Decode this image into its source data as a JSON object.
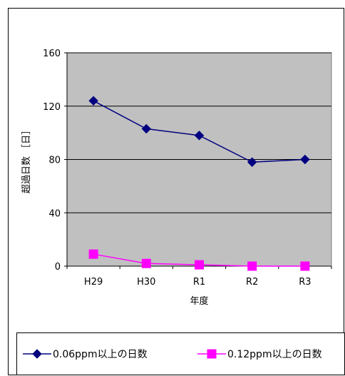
{
  "chart_data": {
    "type": "line",
    "categories": [
      "H29",
      "H30",
      "R1",
      "R2",
      "R3"
    ],
    "series": [
      {
        "name": "0.06ppm以上の日数",
        "values": [
          124,
          103,
          98,
          78,
          80
        ],
        "color": "#000080",
        "marker": "diamond"
      },
      {
        "name": "0.12ppm以上の日数",
        "values": [
          9,
          2,
          1,
          0,
          0
        ],
        "color": "#ff00ff",
        "marker": "square"
      }
    ],
    "title": "",
    "xlabel": "年度",
    "ylabel": "超過日数 ［日］",
    "ylim": [
      0,
      160
    ],
    "yticks": [
      "0",
      "40",
      "80",
      "120",
      "160"
    ],
    "grid": true,
    "plot_background": "#c0c0c0",
    "legend_position": "bottom"
  }
}
